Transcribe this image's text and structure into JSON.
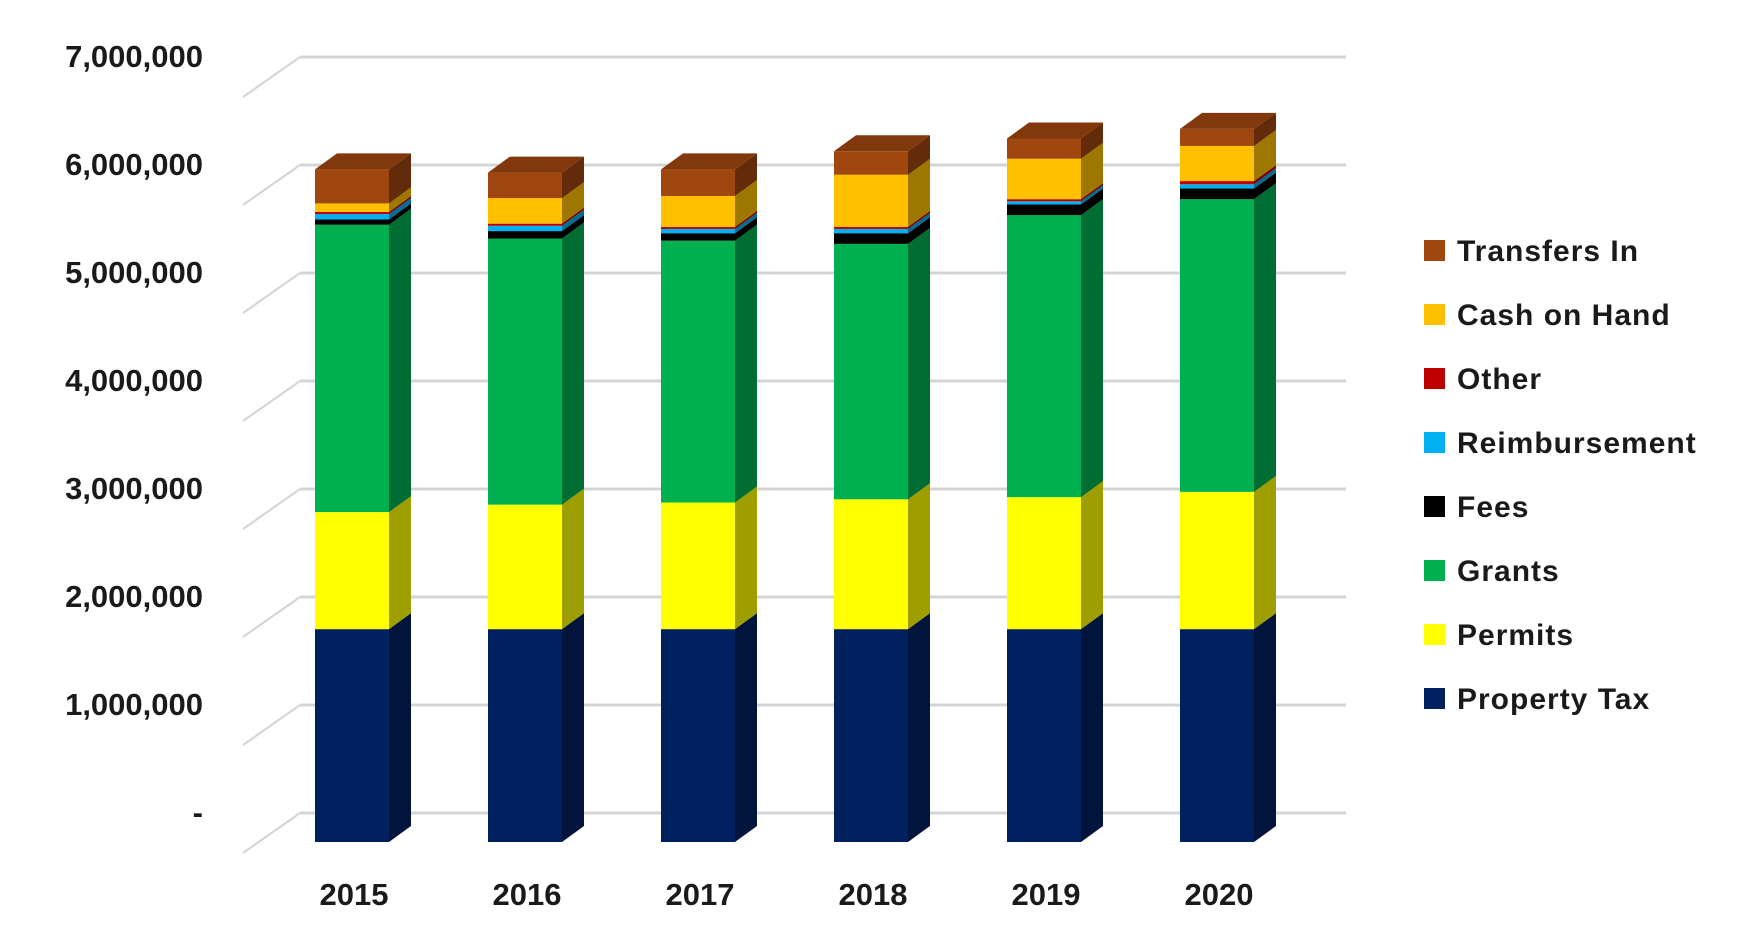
{
  "chart_data": {
    "type": "bar",
    "stacked": true,
    "three_d": true,
    "title": "",
    "xlabel": "",
    "ylabel": "",
    "ylim": [
      0,
      7000000
    ],
    "y_ticks": [
      0,
      1000000,
      2000000,
      3000000,
      4000000,
      5000000,
      6000000,
      7000000
    ],
    "y_tick_labels": [
      "-",
      "1,000,000",
      "2,000,000",
      "3,000,000",
      "4,000,000",
      "5,000,000",
      "6,000,000",
      "7,000,000"
    ],
    "grid": true,
    "legend_position": "right",
    "categories": [
      "2015",
      "2016",
      "2017",
      "2018",
      "2019",
      "2020"
    ],
    "series": [
      {
        "name": "Property Tax",
        "color": "#002060",
        "values": [
          2000000,
          2000000,
          2000000,
          2000000,
          2000000,
          2000000
        ]
      },
      {
        "name": "Permits",
        "color": "#FFFF00",
        "values": [
          1100000,
          1170000,
          1190000,
          1220000,
          1240000,
          1290000
        ]
      },
      {
        "name": "Grants",
        "color": "#00B050",
        "values": [
          2700000,
          2500000,
          2460000,
          2400000,
          2650000,
          2750000
        ]
      },
      {
        "name": "Fees",
        "color": "#000000",
        "values": [
          50000,
          70000,
          70000,
          100000,
          100000,
          100000
        ]
      },
      {
        "name": "Reimbursement",
        "color": "#00B0F0",
        "values": [
          50000,
          50000,
          40000,
          40000,
          30000,
          40000
        ]
      },
      {
        "name": "Other",
        "color": "#C00000",
        "values": [
          20000,
          20000,
          20000,
          20000,
          20000,
          30000
        ]
      },
      {
        "name": "Cash on Hand",
        "color": "#FFC000",
        "values": [
          80000,
          240000,
          290000,
          490000,
          380000,
          330000
        ]
      },
      {
        "name": "Transfers In",
        "color": "#A0460F",
        "values": [
          320000,
          240000,
          250000,
          220000,
          190000,
          160000
        ]
      }
    ]
  }
}
